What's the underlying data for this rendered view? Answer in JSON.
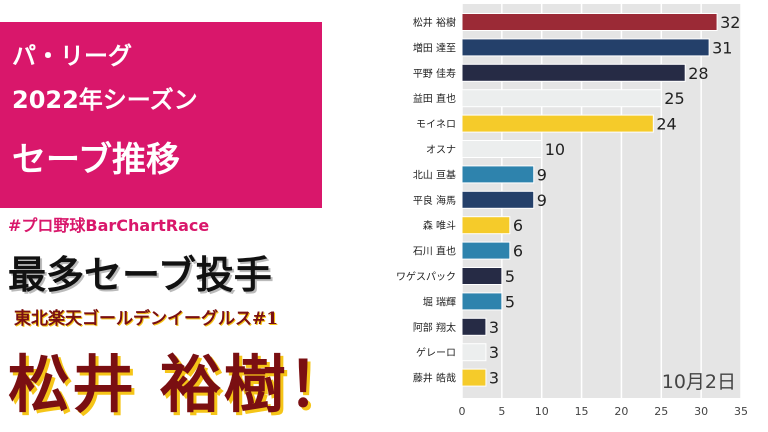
{
  "header": {
    "line1": "パ・リーグ",
    "line2": "2022年シーズン",
    "line3": "セーブ推移"
  },
  "hashtag": "#プロ野球BarChartRace",
  "heading": "最多セーブ投手",
  "team_label": "東北楽天ゴールデンイーグルス#1",
  "winner": "松井 裕樹！",
  "colors": {
    "pink": "#d9176b",
    "maroon": "#7a0f12",
    "yellow": "#f5c518"
  },
  "chart_data": {
    "type": "bar",
    "orientation": "horizontal",
    "date_label": "10月2日",
    "categories": [
      "松井 裕樹",
      "増田 達至",
      "平野 佳寿",
      "益田 直也",
      "モイネロ",
      "オスナ",
      "北山 亘基",
      "平良 海馬",
      "森 唯斗",
      "石川 直也",
      "ワゲスパック",
      "堀 瑞輝",
      "阿部 翔太",
      "ゲレーロ",
      "藤井 皓哉"
    ],
    "values": [
      32,
      31,
      28,
      25,
      24,
      10,
      9,
      9,
      6,
      6,
      5,
      5,
      3,
      3,
      3
    ],
    "bar_colors": [
      "#9b2a36",
      "#24406a",
      "#262b45",
      "#eceeee",
      "#f5cb2a",
      "#eceeee",
      "#2e83ad",
      "#24406a",
      "#f5cb2a",
      "#2e83ad",
      "#262b45",
      "#2e83ad",
      "#262b45",
      "#eceeee",
      "#f5cb2a"
    ],
    "xlim": [
      0,
      35
    ],
    "xticks": [
      0,
      5,
      10,
      15,
      20,
      25,
      30,
      35
    ],
    "grid": true
  }
}
